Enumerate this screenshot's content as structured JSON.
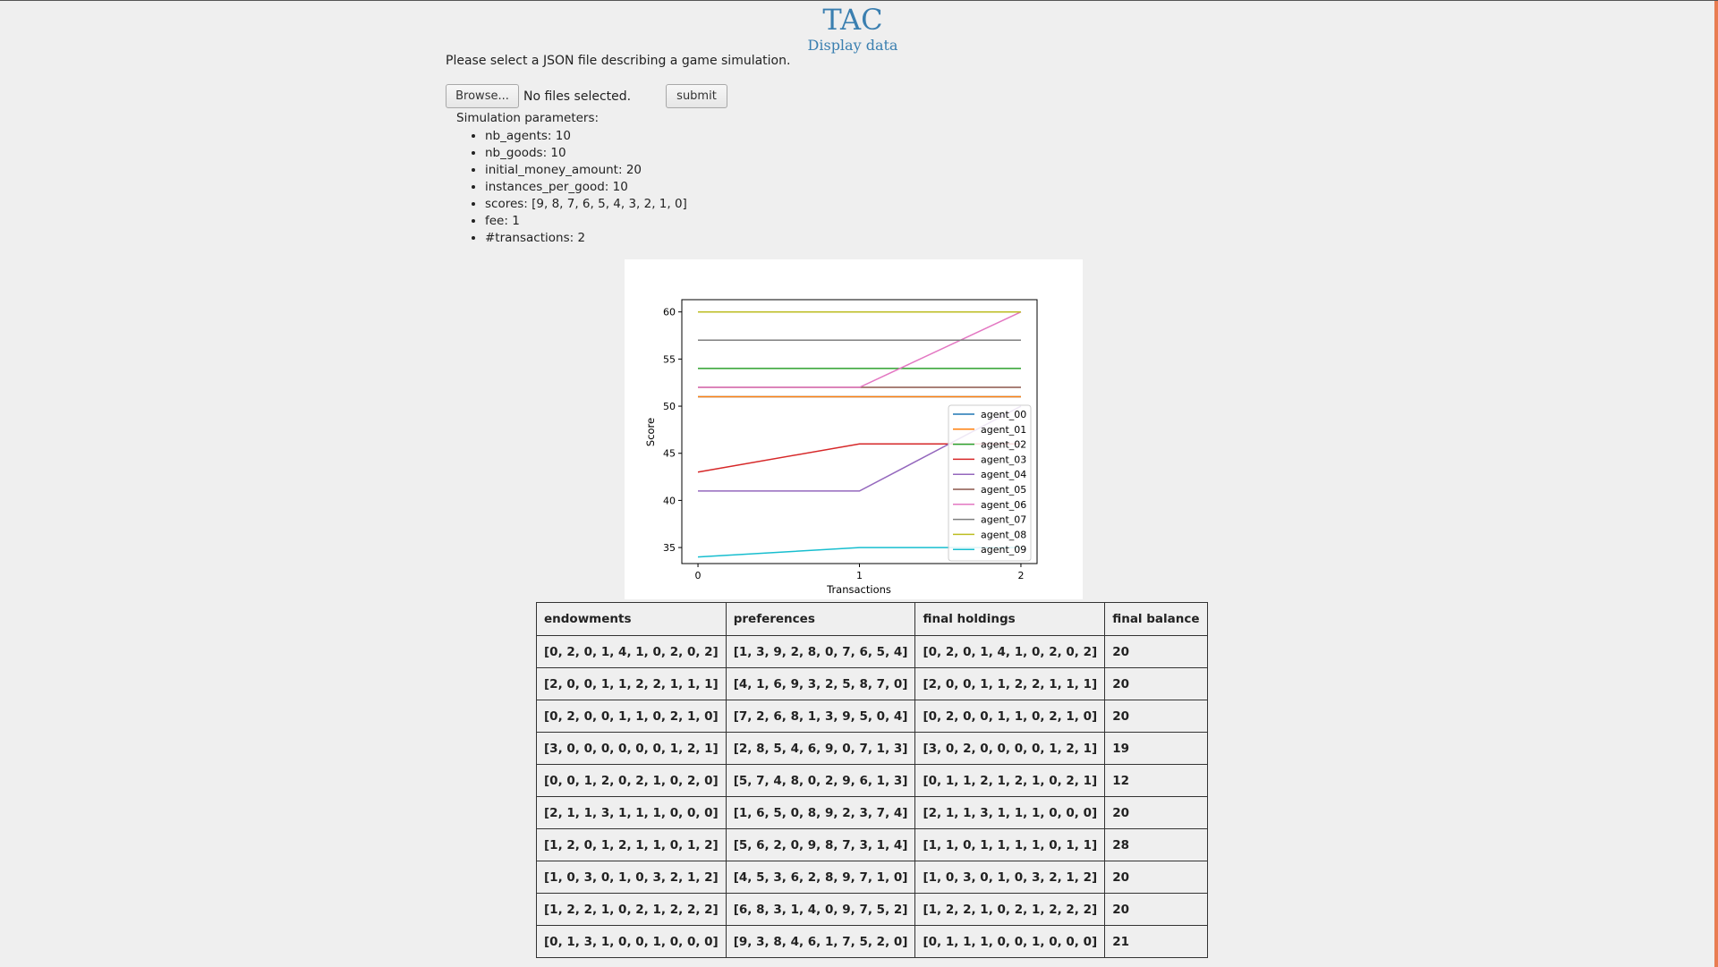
{
  "header": {
    "title": "TAC",
    "subtitle": "Display data"
  },
  "upload": {
    "prompt": "Please select a JSON file describing a game simulation.",
    "browse_label": "Browse...",
    "file_status": "No files selected.",
    "submit_label": "submit"
  },
  "params": {
    "title": "Simulation parameters:",
    "items": [
      "nb_agents: 10",
      "nb_goods: 10",
      "initial_money_amount: 20",
      "instances_per_good: 10",
      "scores: [9, 8, 7, 6, 5, 4, 3, 2, 1, 0]",
      "fee: 1",
      "#transactions: 2"
    ]
  },
  "chart_data": {
    "type": "line",
    "xlabel": "Transactions",
    "ylabel": "Score",
    "x": [
      0,
      1,
      2
    ],
    "xticks": [
      "0",
      "1",
      "2"
    ],
    "yticks": [
      "35",
      "40",
      "45",
      "50",
      "55",
      "60"
    ],
    "xlim": [
      -0.1,
      2.1
    ],
    "ylim": [
      33.3,
      61.3
    ],
    "legend": "lower-right",
    "series": [
      {
        "name": "agent_00",
        "color": "#1f77b4",
        "values": [
          51,
          51,
          51
        ]
      },
      {
        "name": "agent_01",
        "color": "#ff7f0e",
        "values": [
          51,
          51,
          51
        ]
      },
      {
        "name": "agent_02",
        "color": "#2ca02c",
        "values": [
          54,
          54,
          54
        ]
      },
      {
        "name": "agent_03",
        "color": "#d62728",
        "values": [
          43,
          46,
          46
        ]
      },
      {
        "name": "agent_04",
        "color": "#9467bd",
        "values": [
          41,
          41,
          50
        ]
      },
      {
        "name": "agent_05",
        "color": "#8c564b",
        "values": [
          52,
          52,
          52
        ]
      },
      {
        "name": "agent_06",
        "color": "#e377c2",
        "values": [
          52,
          52,
          60
        ]
      },
      {
        "name": "agent_07",
        "color": "#7f7f7f",
        "values": [
          57,
          57,
          57
        ]
      },
      {
        "name": "agent_08",
        "color": "#bcbd22",
        "values": [
          60,
          60,
          60
        ]
      },
      {
        "name": "agent_09",
        "color": "#17becf",
        "values": [
          34,
          35,
          35
        ]
      }
    ]
  },
  "table": {
    "headers": [
      "endowments",
      "preferences",
      "final holdings",
      "final balance"
    ],
    "rows": [
      [
        "[0, 2, 0, 1, 4, 1, 0, 2, 0, 2]",
        "[1, 3, 9, 2, 8, 0, 7, 6, 5, 4]",
        "[0, 2, 0, 1, 4, 1, 0, 2, 0, 2]",
        "20"
      ],
      [
        "[2, 0, 0, 1, 1, 2, 2, 1, 1, 1]",
        "[4, 1, 6, 9, 3, 2, 5, 8, 7, 0]",
        "[2, 0, 0, 1, 1, 2, 2, 1, 1, 1]",
        "20"
      ],
      [
        "[0, 2, 0, 0, 1, 1, 0, 2, 1, 0]",
        "[7, 2, 6, 8, 1, 3, 9, 5, 0, 4]",
        "[0, 2, 0, 0, 1, 1, 0, 2, 1, 0]",
        "20"
      ],
      [
        "[3, 0, 0, 0, 0, 0, 0, 1, 2, 1]",
        "[2, 8, 5, 4, 6, 9, 0, 7, 1, 3]",
        "[3, 0, 2, 0, 0, 0, 0, 1, 2, 1]",
        "19"
      ],
      [
        "[0, 0, 1, 2, 0, 2, 1, 0, 2, 0]",
        "[5, 7, 4, 8, 0, 2, 9, 6, 1, 3]",
        "[0, 1, 1, 2, 1, 2, 1, 0, 2, 1]",
        "12"
      ],
      [
        "[2, 1, 1, 3, 1, 1, 1, 0, 0, 0]",
        "[1, 6, 5, 0, 8, 9, 2, 3, 7, 4]",
        "[2, 1, 1, 3, 1, 1, 1, 0, 0, 0]",
        "20"
      ],
      [
        "[1, 2, 0, 1, 2, 1, 1, 0, 1, 2]",
        "[5, 6, 2, 0, 9, 8, 7, 3, 1, 4]",
        "[1, 1, 0, 1, 1, 1, 1, 0, 1, 1]",
        "28"
      ],
      [
        "[1, 0, 3, 0, 1, 0, 3, 2, 1, 2]",
        "[4, 5, 3, 6, 2, 8, 9, 7, 1, 0]",
        "[1, 0, 3, 0, 1, 0, 3, 2, 1, 2]",
        "20"
      ],
      [
        "[1, 2, 2, 1, 0, 2, 1, 2, 2, 2]",
        "[6, 8, 3, 1, 4, 0, 9, 7, 5, 2]",
        "[1, 2, 2, 1, 0, 2, 1, 2, 2, 2]",
        "20"
      ],
      [
        "[0, 1, 3, 1, 0, 0, 1, 0, 0, 0]",
        "[9, 3, 8, 4, 6, 1, 7, 5, 2, 0]",
        "[0, 1, 1, 1, 0, 0, 1, 0, 0, 0]",
        "21"
      ]
    ]
  }
}
